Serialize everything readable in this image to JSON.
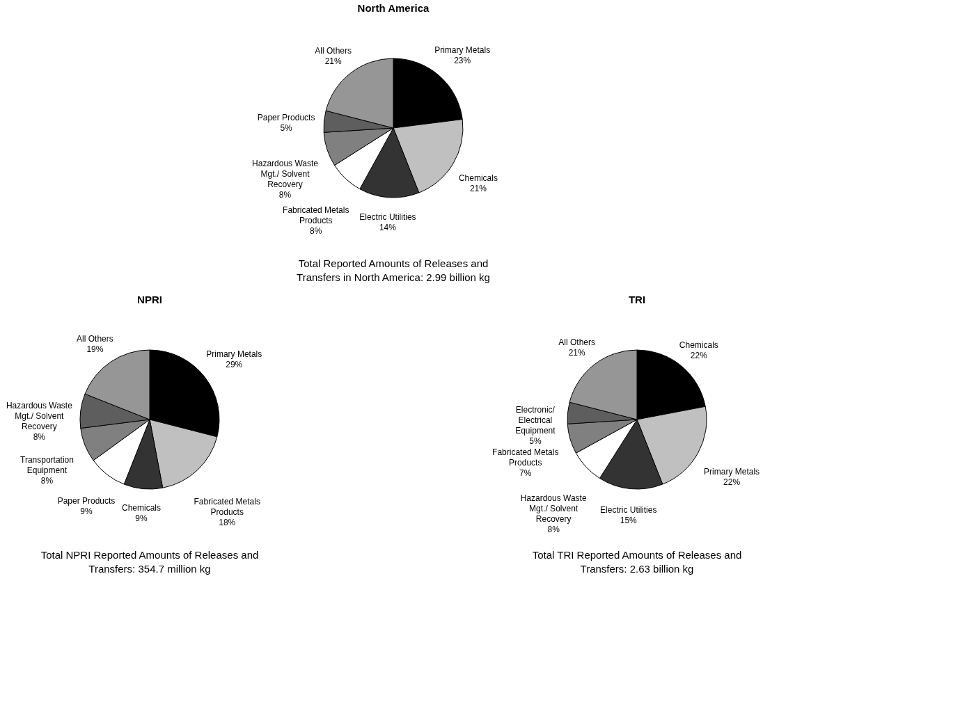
{
  "chart_data": [
    {
      "type": "pie",
      "title": "North America",
      "categories": [
        "Primary Metals",
        "Chemicals",
        "Electric Utilities",
        "Fabricated Metals Products",
        "Hazardous Waste Mgt./ Solvent Recovery",
        "Paper Products",
        "All Others"
      ],
      "values": [
        23,
        21,
        14,
        8,
        8,
        5,
        21
      ],
      "value_labels": [
        "23%",
        "21%",
        "14%",
        "8%",
        "8%",
        "5%",
        "21%"
      ],
      "colors": [
        "#000000",
        "#c0c0c0",
        "#333333",
        "#ffffff",
        "#808080",
        "#5e5e5e",
        "#969696"
      ],
      "annotations": [
        "Total Reported Amounts of Releases and Transfers in North America: 2.99 billion kg"
      ]
    },
    {
      "type": "pie",
      "title": "NPRI",
      "categories": [
        "Primary Metals",
        "Fabricated Metals Products",
        "Chemicals",
        "Paper Products",
        "Transportation Equipment",
        "Hazardous Waste Mgt./ Solvent Recovery",
        "All Others"
      ],
      "values": [
        29,
        18,
        9,
        9,
        8,
        8,
        19
      ],
      "value_labels": [
        "29%",
        "18%",
        "9%",
        "9%",
        "8%",
        "8%",
        "19%"
      ],
      "colors": [
        "#000000",
        "#c0c0c0",
        "#333333",
        "#ffffff",
        "#808080",
        "#5e5e5e",
        "#969696"
      ],
      "annotations": [
        "Total NPRI Reported Amounts of Releases and Transfers: 354.7 million kg"
      ]
    },
    {
      "type": "pie",
      "title": "TRI",
      "categories": [
        "Chemicals",
        "Primary Metals",
        "Electric Utilities",
        "Hazardous Waste Mgt./ Solvent Recovery",
        "Fabricated Metals Products",
        "Electronic/ Electrical Equipment",
        "All Others"
      ],
      "values": [
        22,
        22,
        15,
        8,
        7,
        5,
        21
      ],
      "value_labels": [
        "22%",
        "22%",
        "15%",
        "8%",
        "7%",
        "5%",
        "21%"
      ],
      "colors": [
        "#000000",
        "#c0c0c0",
        "#333333",
        "#ffffff",
        "#808080",
        "#5e5e5e",
        "#969696"
      ],
      "annotations": [
        "Total TRI Reported Amounts of Releases and Transfers: 2.63 billion kg"
      ]
    }
  ]
}
